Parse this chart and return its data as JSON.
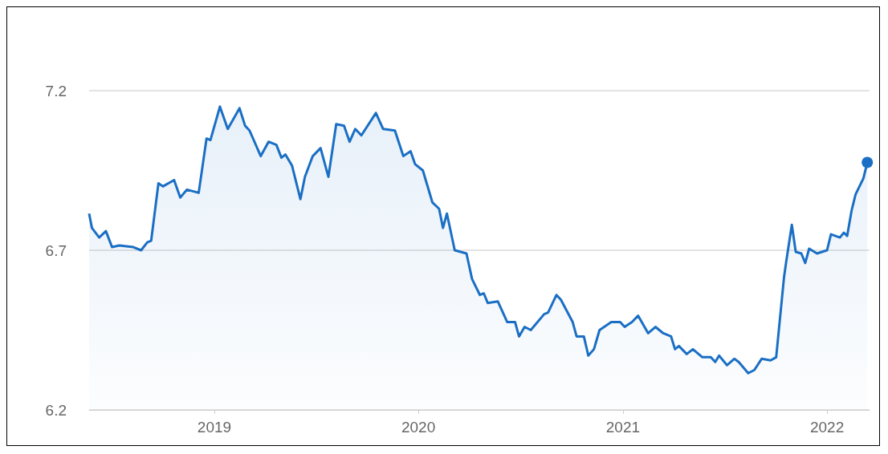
{
  "chart_data": {
    "type": "area",
    "color": "#1a6fc4",
    "x": [
      "2018-05-22",
      "2018-05-27",
      "2018-06-09",
      "2018-06-21",
      "2018-07-02",
      "2018-07-15",
      "2018-08-09",
      "2018-08-23",
      "2018-09-03",
      "2018-09-10",
      "2018-09-23",
      "2018-10-01",
      "2018-10-21",
      "2018-11-01",
      "2018-11-13",
      "2018-12-04",
      "2018-12-18",
      "2018-12-25",
      "2019-01-11",
      "2019-01-25",
      "2019-02-15",
      "2019-02-25",
      "2019-03-05",
      "2019-03-25",
      "2019-04-08",
      "2019-04-22",
      "2019-05-01",
      "2019-05-08",
      "2019-05-20",
      "2019-06-04",
      "2019-06-12",
      "2019-06-26",
      "2019-07-10",
      "2019-07-24",
      "2019-08-07",
      "2019-08-21",
      "2019-08-31",
      "2019-09-10",
      "2019-09-21",
      "2019-10-17",
      "2019-10-30",
      "2019-11-20",
      "2019-12-05",
      "2019-12-18",
      "2019-12-26",
      "2020-01-09",
      "2020-01-26",
      "2020-02-07",
      "2020-02-14",
      "2020-02-21",
      "2020-03-06",
      "2020-03-27",
      "2020-04-06",
      "2020-04-20",
      "2020-04-27",
      "2020-05-04",
      "2020-05-22",
      "2020-06-08",
      "2020-06-22",
      "2020-06-29",
      "2020-07-09",
      "2020-07-20",
      "2020-08-13",
      "2020-08-20",
      "2020-09-04",
      "2020-09-12",
      "2020-10-03",
      "2020-10-10",
      "2020-10-23",
      "2020-10-31",
      "2020-11-10",
      "2020-11-20",
      "2020-12-11",
      "2020-12-27",
      "2021-01-04",
      "2021-01-17",
      "2021-01-28",
      "2021-02-15",
      "2021-02-28",
      "2021-03-14",
      "2021-03-28",
      "2021-04-04",
      "2021-04-11",
      "2021-04-25",
      "2021-05-06",
      "2021-05-23",
      "2021-06-07",
      "2021-06-15",
      "2021-06-22",
      "2021-07-06",
      "2021-07-19",
      "2021-07-27",
      "2021-08-13",
      "2021-08-24",
      "2021-09-06",
      "2021-09-22",
      "2021-10-02",
      "2021-10-16",
      "2021-10-20",
      "2021-10-30",
      "2021-11-06",
      "2021-11-16",
      "2021-11-23",
      "2021-11-30",
      "2021-12-14",
      "2022-01-01",
      "2022-01-08",
      "2022-01-24",
      "2022-01-31",
      "2022-02-06",
      "2022-02-14",
      "2022-02-21",
      "2022-03-07",
      "2022-03-14"
    ],
    "values": [
      6.815,
      6.77,
      6.74,
      6.76,
      6.71,
      6.715,
      6.71,
      6.7,
      6.725,
      6.73,
      6.91,
      6.9,
      6.92,
      6.865,
      6.89,
      6.88,
      7.05,
      7.045,
      7.15,
      7.08,
      7.145,
      7.09,
      7.075,
      6.995,
      7.04,
      7.03,
      6.99,
      7.0,
      6.965,
      6.86,
      6.93,
      6.995,
      7.02,
      6.93,
      7.095,
      7.09,
      7.04,
      7.08,
      7.06,
      7.13,
      7.08,
      7.075,
      6.995,
      7.01,
      6.97,
      6.95,
      6.85,
      6.83,
      6.77,
      6.815,
      6.7,
      6.69,
      6.61,
      6.56,
      6.565,
      6.535,
      6.54,
      6.475,
      6.475,
      6.43,
      6.46,
      6.45,
      6.5,
      6.505,
      6.56,
      6.545,
      6.475,
      6.43,
      6.43,
      6.37,
      6.39,
      6.45,
      6.475,
      6.475,
      6.46,
      6.475,
      6.495,
      6.44,
      6.46,
      6.44,
      6.43,
      6.39,
      6.4,
      6.375,
      6.39,
      6.365,
      6.365,
      6.35,
      6.37,
      6.34,
      6.36,
      6.35,
      6.315,
      6.325,
      6.36,
      6.355,
      6.365,
      6.615,
      6.665,
      6.78,
      6.695,
      6.69,
      6.66,
      6.705,
      6.69,
      6.7,
      6.75,
      6.74,
      6.755,
      6.745,
      6.825,
      6.875,
      6.925,
      6.975
    ],
    "xlim": [
      "2018-05-22",
      "2022-03-18"
    ],
    "xticks": [
      "2019",
      "2020",
      "2021",
      "2022"
    ],
    "ylim": [
      6.2,
      7.2
    ],
    "yticks": [
      6.2,
      6.7,
      7.2
    ],
    "grid": "y"
  }
}
